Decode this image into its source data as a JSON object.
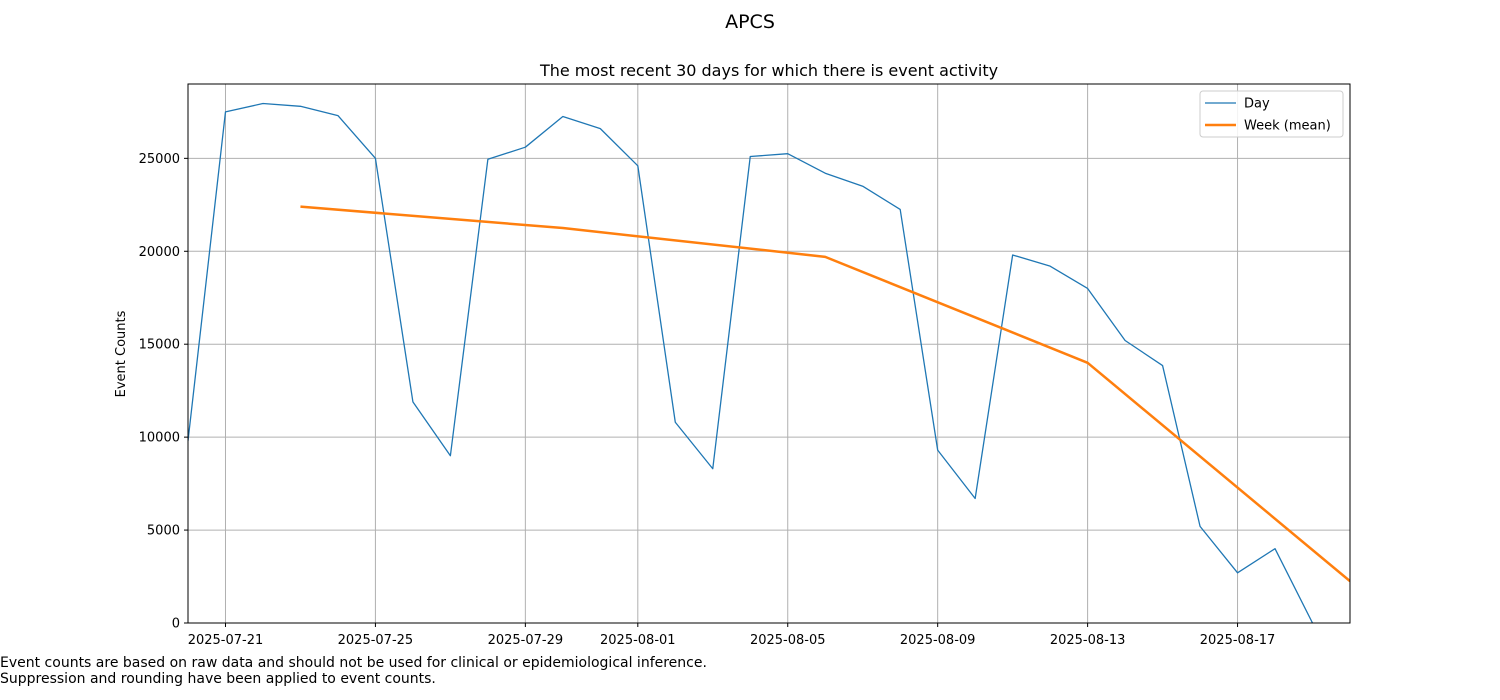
{
  "chart_data": {
    "type": "line",
    "suptitle": "APCS",
    "title": "The most recent 30 days for which there is event activity",
    "xlabel": "",
    "ylabel": "Event Counts",
    "ylim": [
      0,
      29000
    ],
    "xlim": [
      "2025-07-20",
      "2025-08-20"
    ],
    "grid": true,
    "legend_location": "top-right",
    "xticks": [
      "2025-07-21",
      "2025-07-25",
      "2025-07-29",
      "2025-08-01",
      "2025-08-05",
      "2025-08-09",
      "2025-08-13",
      "2025-08-17"
    ],
    "yticks": [
      0,
      5000,
      10000,
      15000,
      20000,
      25000
    ],
    "series": [
      {
        "name": "Day",
        "color": "#1f77b4",
        "x": [
          "2025-07-20",
          "2025-07-21",
          "2025-07-22",
          "2025-07-23",
          "2025-07-24",
          "2025-07-25",
          "2025-07-26",
          "2025-07-27",
          "2025-07-28",
          "2025-07-29",
          "2025-07-30",
          "2025-07-31",
          "2025-08-01",
          "2025-08-02",
          "2025-08-03",
          "2025-08-04",
          "2025-08-05",
          "2025-08-06",
          "2025-08-07",
          "2025-08-08",
          "2025-08-09",
          "2025-08-10",
          "2025-08-11",
          "2025-08-12",
          "2025-08-13",
          "2025-08-14",
          "2025-08-15",
          "2025-08-16",
          "2025-08-17",
          "2025-08-18",
          "2025-08-19"
        ],
        "values": [
          9800,
          27500,
          27950,
          27800,
          27300,
          25000,
          11900,
          9000,
          24950,
          25600,
          27250,
          26600,
          24600,
          10800,
          8300,
          25100,
          25250,
          24200,
          23500,
          22250,
          9300,
          6700,
          19800,
          19200,
          18000,
          15200,
          13850,
          5200,
          2700,
          4000,
          0
        ]
      },
      {
        "name": "Week (mean)",
        "color": "#ff7f0e",
        "x": [
          "2025-07-23",
          "2025-07-30",
          "2025-08-06",
          "2025-08-13",
          "2025-08-20"
        ],
        "values": [
          22400,
          21250,
          19700,
          14000,
          2250
        ]
      }
    ]
  },
  "footnotes": [
    "Event counts are based on raw data and should not be used for clinical or epidemiological inference.",
    "Suppression and rounding have been applied to event counts."
  ]
}
